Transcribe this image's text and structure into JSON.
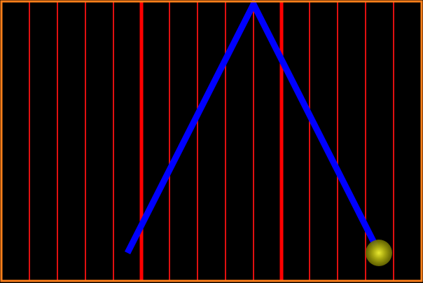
{
  "colors": {
    "background": "#000000",
    "border": "#ff7f1a",
    "grid_line": "#e01010",
    "grid_line_major": "#ff0000",
    "path": "#0000ff",
    "ball_core": "#e8e830",
    "ball_glow": "#6b6b00"
  },
  "grid": {
    "line_count": 14,
    "major_line_indexes": [
      4,
      9
    ]
  },
  "icons": {
    "ball": "glowing-ball"
  }
}
